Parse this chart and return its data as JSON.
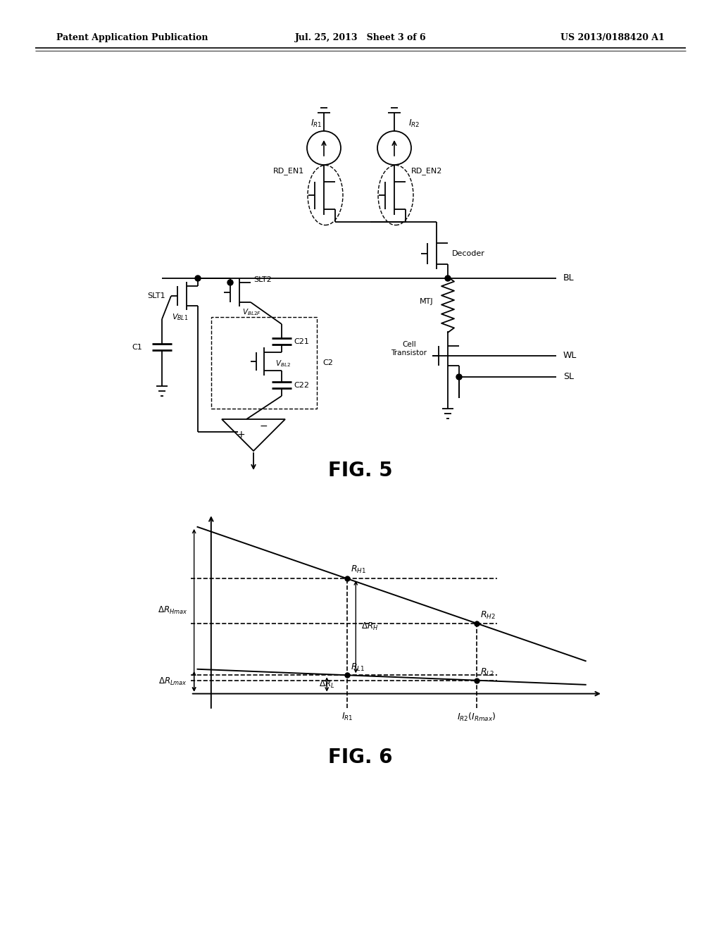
{
  "header_left": "Patent Application Publication",
  "header_mid": "Jul. 25, 2013   Sheet 3 of 6",
  "header_right": "US 2013/0188420 A1",
  "fig5_label": "FIG. 5",
  "fig6_label": "FIG. 6",
  "bg_color": "#ffffff",
  "line_color": "#000000"
}
